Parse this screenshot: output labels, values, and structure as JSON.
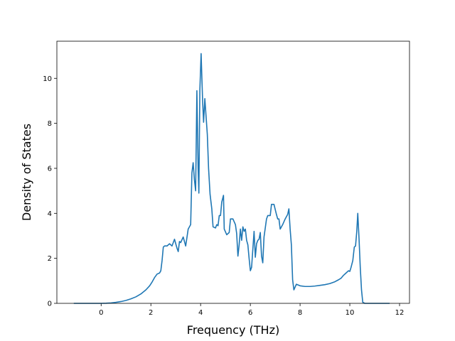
{
  "chart_data": {
    "type": "line",
    "title": "",
    "xlabel": "Frequency (THz)",
    "ylabel": "Density of States",
    "xlim": [
      -1.78,
      12.4
    ],
    "ylim": [
      0,
      11.65
    ],
    "x_ticks": [
      0,
      2,
      4,
      6,
      8,
      10,
      12
    ],
    "y_ticks": [
      0,
      2,
      4,
      6,
      8,
      10
    ],
    "grid": false,
    "legend": "none",
    "series": [
      {
        "color": "#1f77b4",
        "points": [
          [
            -1.1,
            0.0
          ],
          [
            -0.5,
            0.0
          ],
          [
            0.0,
            0.0
          ],
          [
            0.2,
            0.005
          ],
          [
            0.4,
            0.02
          ],
          [
            0.6,
            0.045
          ],
          [
            0.8,
            0.08
          ],
          [
            1.0,
            0.13
          ],
          [
            1.2,
            0.2
          ],
          [
            1.4,
            0.29
          ],
          [
            1.6,
            0.42
          ],
          [
            1.8,
            0.6
          ],
          [
            1.95,
            0.78
          ],
          [
            2.05,
            0.95
          ],
          [
            2.15,
            1.15
          ],
          [
            2.25,
            1.3
          ],
          [
            2.35,
            1.35
          ],
          [
            2.4,
            1.45
          ],
          [
            2.45,
            1.9
          ],
          [
            2.5,
            2.5
          ],
          [
            2.55,
            2.55
          ],
          [
            2.65,
            2.55
          ],
          [
            2.75,
            2.65
          ],
          [
            2.85,
            2.55
          ],
          [
            2.95,
            2.85
          ],
          [
            3.05,
            2.45
          ],
          [
            3.1,
            2.3
          ],
          [
            3.15,
            2.75
          ],
          [
            3.2,
            2.7
          ],
          [
            3.3,
            2.95
          ],
          [
            3.4,
            2.55
          ],
          [
            3.5,
            3.3
          ],
          [
            3.6,
            3.5
          ],
          [
            3.65,
            5.8
          ],
          [
            3.7,
            6.25
          ],
          [
            3.75,
            5.5
          ],
          [
            3.8,
            5.0
          ],
          [
            3.85,
            9.45
          ],
          [
            3.9,
            6.0
          ],
          [
            3.93,
            4.9
          ],
          [
            3.97,
            9.5
          ],
          [
            4.02,
            11.1
          ],
          [
            4.08,
            9.0
          ],
          [
            4.12,
            8.05
          ],
          [
            4.17,
            9.1
          ],
          [
            4.22,
            8.3
          ],
          [
            4.27,
            7.5
          ],
          [
            4.32,
            6.0
          ],
          [
            4.38,
            4.85
          ],
          [
            4.45,
            4.2
          ],
          [
            4.5,
            3.4
          ],
          [
            4.6,
            3.35
          ],
          [
            4.65,
            3.5
          ],
          [
            4.7,
            3.45
          ],
          [
            4.75,
            3.9
          ],
          [
            4.8,
            3.9
          ],
          [
            4.85,
            4.5
          ],
          [
            4.92,
            4.8
          ],
          [
            4.95,
            3.3
          ],
          [
            5.05,
            3.05
          ],
          [
            5.15,
            3.15
          ],
          [
            5.2,
            3.75
          ],
          [
            5.3,
            3.75
          ],
          [
            5.4,
            3.5
          ],
          [
            5.45,
            3.1
          ],
          [
            5.5,
            2.1
          ],
          [
            5.55,
            2.6
          ],
          [
            5.6,
            3.3
          ],
          [
            5.65,
            2.8
          ],
          [
            5.7,
            3.4
          ],
          [
            5.75,
            3.2
          ],
          [
            5.8,
            3.3
          ],
          [
            5.85,
            2.8
          ],
          [
            5.9,
            2.6
          ],
          [
            5.95,
            2.0
          ],
          [
            6.0,
            1.45
          ],
          [
            6.05,
            1.6
          ],
          [
            6.15,
            3.2
          ],
          [
            6.2,
            2.05
          ],
          [
            6.25,
            2.65
          ],
          [
            6.3,
            2.8
          ],
          [
            6.35,
            2.85
          ],
          [
            6.4,
            3.15
          ],
          [
            6.45,
            2.1
          ],
          [
            6.5,
            1.8
          ],
          [
            6.55,
            2.95
          ],
          [
            6.65,
            3.75
          ],
          [
            6.7,
            3.9
          ],
          [
            6.8,
            3.9
          ],
          [
            6.85,
            4.4
          ],
          [
            6.95,
            4.4
          ],
          [
            7.05,
            3.95
          ],
          [
            7.1,
            3.75
          ],
          [
            7.15,
            3.75
          ],
          [
            7.2,
            3.3
          ],
          [
            7.3,
            3.5
          ],
          [
            7.4,
            3.75
          ],
          [
            7.5,
            3.95
          ],
          [
            7.55,
            4.2
          ],
          [
            7.6,
            3.3
          ],
          [
            7.65,
            2.6
          ],
          [
            7.7,
            1.05
          ],
          [
            7.75,
            0.6
          ],
          [
            7.85,
            0.85
          ],
          [
            8.0,
            0.78
          ],
          [
            8.2,
            0.75
          ],
          [
            8.4,
            0.75
          ],
          [
            8.6,
            0.77
          ],
          [
            8.8,
            0.8
          ],
          [
            9.0,
            0.83
          ],
          [
            9.2,
            0.88
          ],
          [
            9.4,
            0.96
          ],
          [
            9.55,
            1.05
          ],
          [
            9.65,
            1.12
          ],
          [
            9.75,
            1.25
          ],
          [
            9.85,
            1.35
          ],
          [
            9.95,
            1.45
          ],
          [
            10.0,
            1.42
          ],
          [
            10.05,
            1.6
          ],
          [
            10.12,
            1.9
          ],
          [
            10.18,
            2.5
          ],
          [
            10.23,
            2.55
          ],
          [
            10.28,
            3.2
          ],
          [
            10.32,
            4.0
          ],
          [
            10.37,
            2.9
          ],
          [
            10.42,
            1.6
          ],
          [
            10.47,
            0.6
          ],
          [
            10.52,
            0.05
          ],
          [
            10.6,
            0.0
          ],
          [
            11.0,
            0.0
          ],
          [
            11.6,
            0.0
          ]
        ]
      }
    ]
  }
}
